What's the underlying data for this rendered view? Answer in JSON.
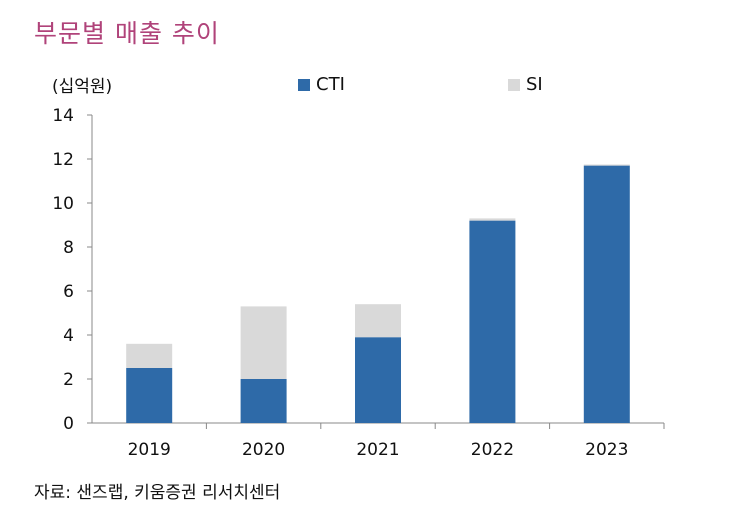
{
  "title": "부문별 매출 추이",
  "unit_label": "(십억원)",
  "source": "자료: 샌즈랩, 키움증권 리서치센터",
  "colors": {
    "title": "#b0437a",
    "cti": "#2e6aa8",
    "si": "#d9d9d9",
    "axis": "#888888"
  },
  "chart_data": {
    "type": "bar",
    "stacked": true,
    "title": "부문별 매출 추이",
    "ylabel": "(십억원)",
    "xlabel": "",
    "categories": [
      "2019",
      "2020",
      "2021",
      "2022",
      "2023"
    ],
    "series": [
      {
        "name": "CTI",
        "values": [
          2.5,
          2.0,
          3.9,
          9.2,
          11.7
        ]
      },
      {
        "name": "SI",
        "values": [
          1.1,
          3.3,
          1.5,
          0.1,
          0.05
        ]
      }
    ],
    "ylim": [
      0,
      14
    ],
    "yticks": [
      0,
      2,
      4,
      6,
      8,
      10,
      12,
      14
    ],
    "legend": "top"
  }
}
